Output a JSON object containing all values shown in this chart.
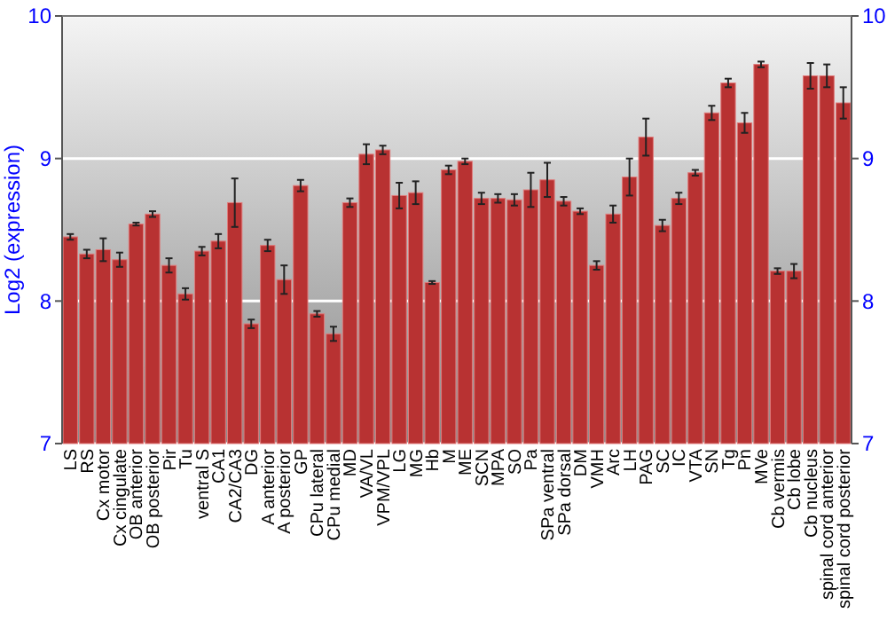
{
  "chart_data": {
    "type": "bar",
    "ylabel": "Log2 (expression)",
    "categories": [
      "LS",
      "RS",
      "Cx motor",
      "Cx cingulate",
      "OB anterior",
      "OB posterior",
      "Pir",
      "Tu",
      "ventral S",
      "CA1",
      "CA2/CA3",
      "DG",
      "A anterior",
      "A posterior",
      "GP",
      "CPu lateral",
      "CPu medial",
      "MD",
      "VA/VL",
      "VPM/VPL",
      "LG",
      "MG",
      "Hb",
      "M",
      "ME",
      "SCN",
      "MPA",
      "SO",
      "Pa",
      "SPa ventral",
      "SPa dorsal",
      "DM",
      "VMH",
      "Arc",
      "LH",
      "PAG",
      "SC",
      "IC",
      "VTA",
      "SN",
      "Tg",
      "Pn",
      "MVe",
      "Cb vermis",
      "Cb lobe",
      "Cb nucleus",
      "spinal cord anterior",
      "spinal cord posterior"
    ],
    "values": [
      8.45,
      8.33,
      8.36,
      8.29,
      8.54,
      8.61,
      8.25,
      8.05,
      8.35,
      8.42,
      8.69,
      7.84,
      8.39,
      8.15,
      8.81,
      7.91,
      7.77,
      8.69,
      9.03,
      9.06,
      8.74,
      8.76,
      8.13,
      8.92,
      8.98,
      8.72,
      8.72,
      8.71,
      8.78,
      8.85,
      8.7,
      8.63,
      8.25,
      8.61,
      8.87,
      9.15,
      8.53,
      8.72,
      8.9,
      9.32,
      9.53,
      9.25,
      9.66,
      8.21,
      8.21,
      9.58,
      9.58,
      9.39
    ],
    "errors": [
      0.02,
      0.03,
      0.08,
      0.05,
      0.01,
      0.02,
      0.05,
      0.04,
      0.03,
      0.05,
      0.17,
      0.03,
      0.04,
      0.1,
      0.04,
      0.02,
      0.05,
      0.03,
      0.07,
      0.03,
      0.09,
      0.08,
      0.01,
      0.03,
      0.02,
      0.04,
      0.03,
      0.04,
      0.12,
      0.12,
      0.03,
      0.02,
      0.03,
      0.06,
      0.13,
      0.13,
      0.04,
      0.04,
      0.02,
      0.05,
      0.03,
      0.07,
      0.02,
      0.02,
      0.05,
      0.09,
      0.08,
      0.11
    ],
    "color": "#b83232",
    "ylim": [
      7,
      10
    ],
    "yticks": [
      7,
      8,
      9,
      10
    ],
    "y2lim": [
      7,
      10
    ],
    "y2ticks": [
      7,
      8,
      9,
      10
    ],
    "grid": "y"
  }
}
